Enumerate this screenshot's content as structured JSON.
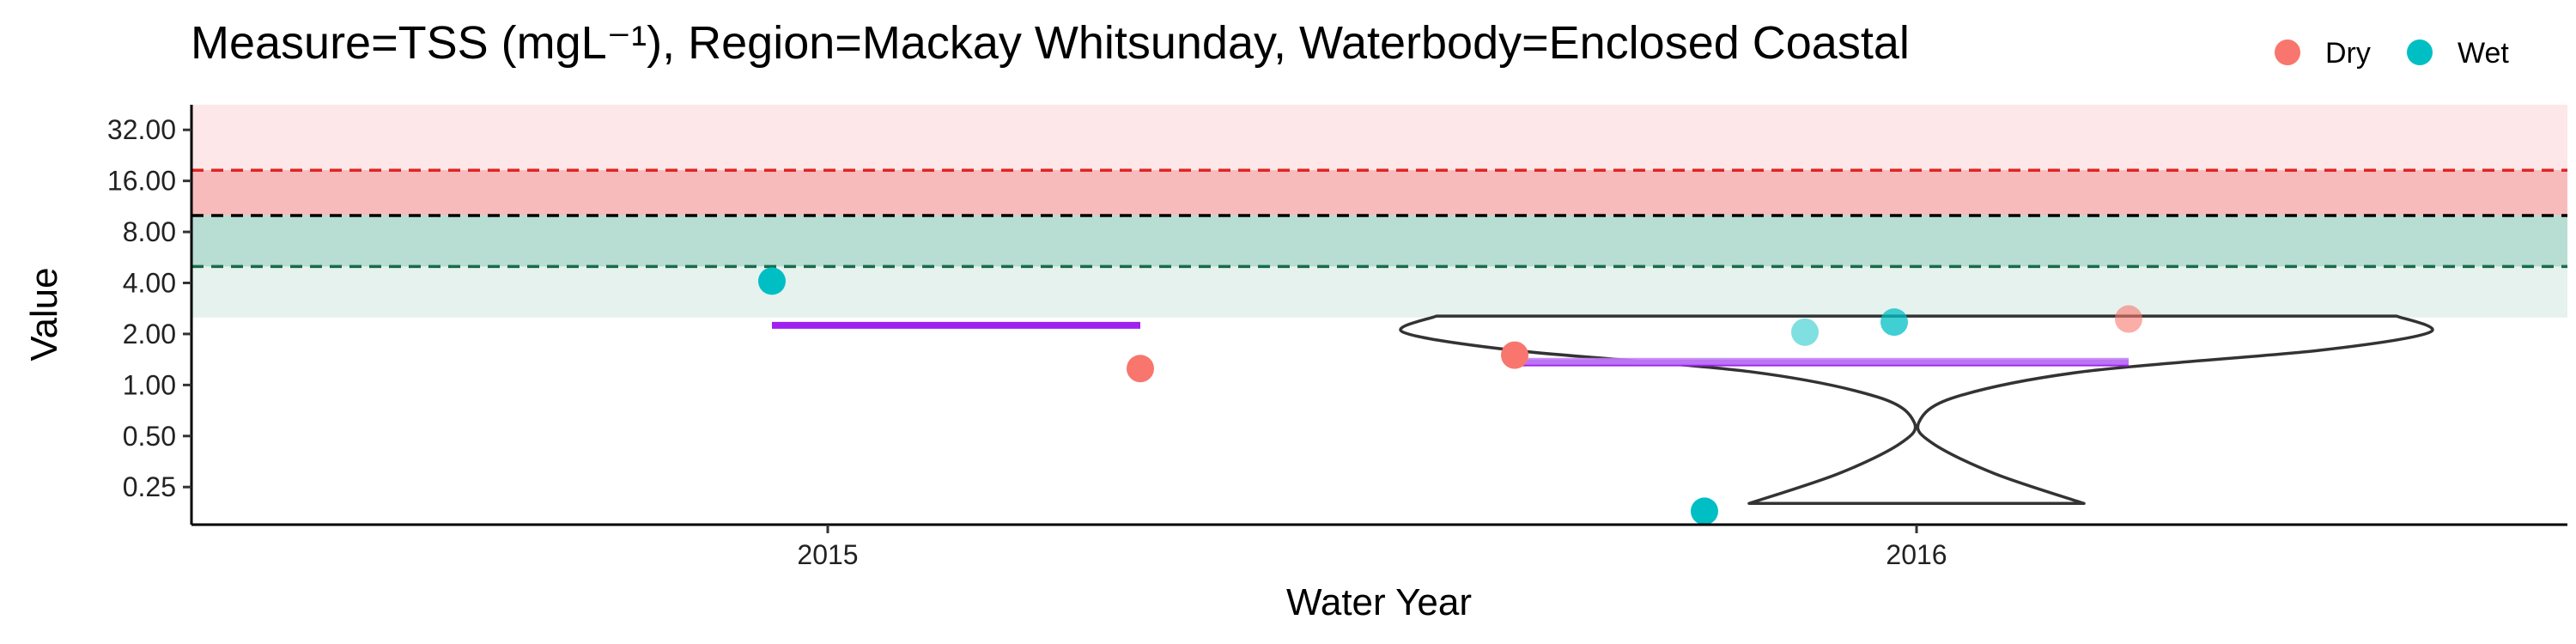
{
  "chart_data": {
    "type": "scatter",
    "title": "Measure=TSS (mgL⁻¹), Region=Mackay Whitsunday, Waterbody=Enclosed Coastal",
    "xlabel": "Water Year",
    "ylabel": "Value",
    "y_scale": "log2",
    "ylim": [
      0.15,
      45
    ],
    "y_ticks": [
      0.25,
      0.5,
      1,
      2,
      4,
      8,
      16,
      32
    ],
    "y_tick_labels": [
      "0.25",
      "0.50",
      "1.00",
      "2.00",
      "4.00",
      "8.00",
      "16.00",
      "32.00"
    ],
    "x_categories": [
      "2015",
      "2016"
    ],
    "grid": false,
    "legend": {
      "position": "top-right",
      "entries": [
        {
          "label": "Dry",
          "color": "#F8766D"
        },
        {
          "label": "Wet",
          "color": "#00BFC4"
        }
      ]
    },
    "background_bands": [
      {
        "ymin": 10.0,
        "ymax": 45.0,
        "color": "#FDE7E8"
      },
      {
        "ymin": 10.0,
        "ymax": 18.5,
        "color": "#F8BBBB"
      },
      {
        "ymin": 2.5,
        "ymax": 10.0,
        "color": "#E5F2EE"
      },
      {
        "ymin": 5.0,
        "ymax": 10.0,
        "color": "#B8DDD3"
      }
    ],
    "reference_lines": [
      {
        "y": 18.5,
        "color": "#E02424",
        "style": "dashed"
      },
      {
        "y": 10.0,
        "color": "#000000",
        "style": "dashed"
      },
      {
        "y": 5.0,
        "color": "#1A6B4A",
        "style": "dashed"
      }
    ],
    "points": [
      {
        "year": "2015",
        "offset": -0.05,
        "value": 4.1,
        "season": "Wet",
        "opacity": 1.0
      },
      {
        "year": "2015",
        "offset": 0.28,
        "value": 1.25,
        "season": "Dry",
        "opacity": 1.0
      },
      {
        "year": "2016",
        "offset": -0.36,
        "value": 1.5,
        "season": "Dry",
        "opacity": 1.0
      },
      {
        "year": "2016",
        "offset": -0.19,
        "value": 0.18,
        "season": "Wet",
        "opacity": 1.0
      },
      {
        "year": "2016",
        "offset": -0.1,
        "value": 2.05,
        "season": "Wet",
        "opacity": 0.5
      },
      {
        "year": "2016",
        "offset": -0.02,
        "value": 2.35,
        "season": "Wet",
        "opacity": 0.75
      },
      {
        "year": "2016",
        "offset": 0.19,
        "value": 2.45,
        "season": "Dry",
        "opacity": 0.6
      }
    ],
    "median_lines": [
      {
        "year": "2015",
        "from": -0.05,
        "to": 0.28,
        "value": 2.25,
        "color": "#A020F0",
        "opacity": 1.0
      },
      {
        "year": "2016",
        "from": -0.36,
        "to": 0.19,
        "value": 1.35,
        "color": "#A020F0",
        "opacity": 1.0
      },
      {
        "year": "2016",
        "from": -0.36,
        "to": 0.19,
        "value": 1.38,
        "color": "#C084F5",
        "opacity": 0.85
      }
    ],
    "violin": {
      "year": "2016",
      "profile": [
        {
          "value": 0.2,
          "halfwidth": 0.15
        },
        {
          "value": 0.3,
          "halfwidth": 0.07
        },
        {
          "value": 0.45,
          "halfwidth": 0.015
        },
        {
          "value": 0.6,
          "halfwidth": 0.002
        },
        {
          "value": 0.85,
          "halfwidth": 0.035
        },
        {
          "value": 1.2,
          "halfwidth": 0.15
        },
        {
          "value": 1.6,
          "halfwidth": 0.36
        },
        {
          "value": 2.05,
          "halfwidth": 0.46
        },
        {
          "value": 2.55,
          "halfwidth": 0.43
        }
      ]
    }
  }
}
